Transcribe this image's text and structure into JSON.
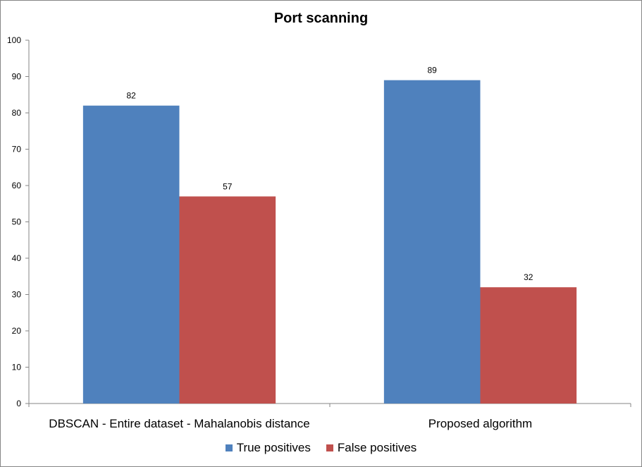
{
  "chart_data": {
    "type": "bar",
    "title": "Port scanning",
    "categories": [
      "DBSCAN - Entire dataset - Mahalanobis distance",
      "Proposed algorithm"
    ],
    "series": [
      {
        "name": "True positives",
        "color": "#4F81BD",
        "values": [
          82,
          89
        ]
      },
      {
        "name": "False positives",
        "color": "#C0504D",
        "values": [
          57,
          32
        ]
      }
    ],
    "ylim": [
      0,
      100
    ],
    "yticks": [
      0,
      10,
      20,
      30,
      40,
      50,
      60,
      70,
      80,
      90,
      100
    ],
    "xlabel": "",
    "ylabel": "",
    "grid": false,
    "legend_position": "bottom",
    "data_labels": true
  }
}
